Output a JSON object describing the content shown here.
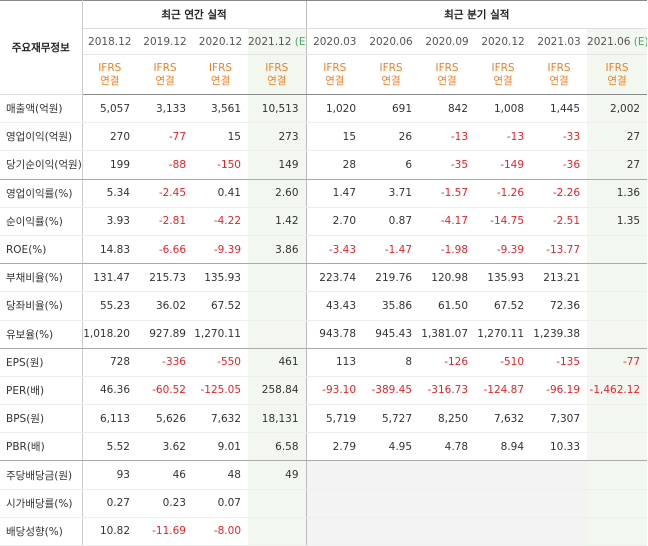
{
  "header": {
    "label": "주요재무정보",
    "annual_title": "최근 연간 실적",
    "quarter_title": "최근 분기 실적",
    "ifrs_top": "IFRS",
    "ifrs_bottom": "연결",
    "estimate_mark": "(E)"
  },
  "periods": [
    {
      "label": "2018.12",
      "est": false
    },
    {
      "label": "2019.12",
      "est": false
    },
    {
      "label": "2020.12",
      "est": false
    },
    {
      "label": "2021.12",
      "est": true
    },
    {
      "label": "2020.03",
      "est": false
    },
    {
      "label": "2020.06",
      "est": false
    },
    {
      "label": "2020.09",
      "est": false
    },
    {
      "label": "2020.12",
      "est": false
    },
    {
      "label": "2021.03",
      "est": false
    },
    {
      "label": "2021.06",
      "est": true
    }
  ],
  "rows": [
    {
      "label": "매출액(억원)",
      "values": [
        "5,057",
        "3,133",
        "3,561",
        "10,513",
        "1,020",
        "691",
        "842",
        "1,008",
        "1,445",
        "2,002"
      ]
    },
    {
      "label": "영업이익(억원)",
      "values": [
        "270",
        "-77",
        "15",
        "273",
        "15",
        "26",
        "-13",
        "-13",
        "-33",
        "27"
      ]
    },
    {
      "label": "당기순이익(억원)",
      "values": [
        "199",
        "-88",
        "-150",
        "149",
        "28",
        "6",
        "-35",
        "-149",
        "-36",
        "27"
      ],
      "group_end": true
    },
    {
      "label": "영업이익률(%)",
      "values": [
        "5.34",
        "-2.45",
        "0.41",
        "2.60",
        "1.47",
        "3.71",
        "-1.57",
        "-1.26",
        "-2.26",
        "1.36"
      ]
    },
    {
      "label": "순이익률(%)",
      "values": [
        "3.93",
        "-2.81",
        "-4.22",
        "1.42",
        "2.70",
        "0.87",
        "-4.17",
        "-14.75",
        "-2.51",
        "1.35"
      ]
    },
    {
      "label": "ROE(%)",
      "values": [
        "14.83",
        "-6.66",
        "-9.39",
        "3.86",
        "-3.43",
        "-1.47",
        "-1.98",
        "-9.39",
        "-13.77",
        ""
      ],
      "group_end": true
    },
    {
      "label": "부채비율(%)",
      "values": [
        "131.47",
        "215.73",
        "135.93",
        "",
        "223.74",
        "219.76",
        "120.98",
        "135.93",
        "213.21",
        ""
      ]
    },
    {
      "label": "당좌비율(%)",
      "values": [
        "55.23",
        "36.02",
        "67.52",
        "",
        "43.43",
        "35.86",
        "61.50",
        "67.52",
        "72.36",
        ""
      ]
    },
    {
      "label": "유보율(%)",
      "values": [
        "1,018.20",
        "927.89",
        "1,270.11",
        "",
        "943.78",
        "945.43",
        "1,381.07",
        "1,270.11",
        "1,239.38",
        ""
      ],
      "group_end": true
    },
    {
      "label": "EPS(원)",
      "values": [
        "728",
        "-336",
        "-550",
        "461",
        "113",
        "8",
        "-126",
        "-510",
        "-135",
        "-77"
      ]
    },
    {
      "label": "PER(배)",
      "values": [
        "46.36",
        "-60.52",
        "-125.05",
        "258.84",
        "-93.10",
        "-389.45",
        "-316.73",
        "-124.87",
        "-96.19",
        "-1,462.12"
      ]
    },
    {
      "label": "BPS(원)",
      "values": [
        "6,113",
        "5,626",
        "7,632",
        "18,131",
        "5,719",
        "5,727",
        "8,250",
        "7,632",
        "7,307",
        ""
      ]
    },
    {
      "label": "PBR(배)",
      "values": [
        "5.52",
        "3.62",
        "9.01",
        "6.58",
        "2.79",
        "4.95",
        "4.78",
        "8.94",
        "10.33",
        ""
      ],
      "group_end": true
    },
    {
      "label": "주당배당금(원)",
      "values": [
        "93",
        "46",
        "48",
        "49",
        "",
        "",
        "",
        "",
        "",
        ""
      ],
      "quarter_empty": true
    },
    {
      "label": "시가배당률(%)",
      "values": [
        "0.27",
        "0.23",
        "0.07",
        "",
        "",
        "",
        "",
        "",
        "",
        ""
      ],
      "quarter_empty": true
    },
    {
      "label": "배당성향(%)",
      "values": [
        "10.82",
        "-11.69",
        "-8.00",
        "",
        "",
        "",
        "",
        "",
        "",
        ""
      ],
      "quarter_empty": true
    }
  ]
}
